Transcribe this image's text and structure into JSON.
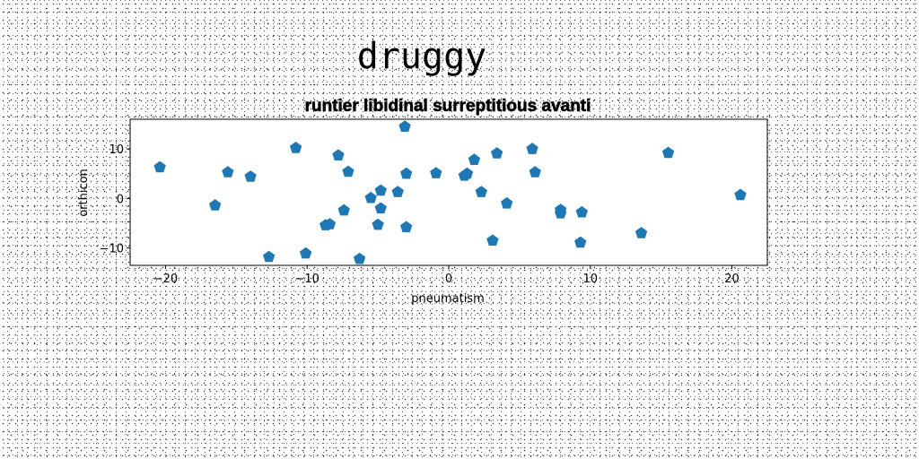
{
  "figure": {
    "suptitle": "druggy"
  },
  "chart_data": {
    "type": "scatter",
    "title": "runtier libidinal surreptitious avanti",
    "xlabel": "pneumatism",
    "ylabel": "orthicon",
    "xlim": [
      -22.5,
      22.5
    ],
    "ylim": [
      -13.5,
      16
    ],
    "xticks": [
      -20,
      -10,
      0,
      10,
      20
    ],
    "xtick_labels": [
      "−20",
      "−10",
      "0",
      "10",
      "20"
    ],
    "yticks": [
      -10,
      0,
      10
    ],
    "ytick_labels": [
      "−10",
      "0",
      "10"
    ],
    "grid": false,
    "marker": "pentagon",
    "color": "#1f77b4",
    "points": [
      {
        "x": -20.4,
        "y": 6.3
      },
      {
        "x": -16.5,
        "y": -1.4
      },
      {
        "x": -15.6,
        "y": 5.3
      },
      {
        "x": -14.0,
        "y": 4.4
      },
      {
        "x": -12.7,
        "y": -11.8
      },
      {
        "x": -10.8,
        "y": 10.2
      },
      {
        "x": -10.1,
        "y": -11.1
      },
      {
        "x": -8.7,
        "y": -5.4
      },
      {
        "x": -8.4,
        "y": -5.2
      },
      {
        "x": -7.8,
        "y": 8.7
      },
      {
        "x": -7.4,
        "y": -2.4
      },
      {
        "x": -7.1,
        "y": 5.4
      },
      {
        "x": -6.3,
        "y": -12.2
      },
      {
        "x": -5.5,
        "y": 0.1
      },
      {
        "x": -5.0,
        "y": -5.3
      },
      {
        "x": -4.8,
        "y": 1.6
      },
      {
        "x": -4.8,
        "y": -2.0
      },
      {
        "x": -3.6,
        "y": 1.3
      },
      {
        "x": -3.1,
        "y": 14.5
      },
      {
        "x": -3.0,
        "y": 5.0
      },
      {
        "x": -3.0,
        "y": -5.8
      },
      {
        "x": -0.9,
        "y": 5.1
      },
      {
        "x": 1.1,
        "y": 4.6
      },
      {
        "x": 1.3,
        "y": 5.0
      },
      {
        "x": 1.8,
        "y": 7.8
      },
      {
        "x": 2.3,
        "y": 1.3
      },
      {
        "x": 3.1,
        "y": -8.5
      },
      {
        "x": 3.4,
        "y": 9.1
      },
      {
        "x": 4.1,
        "y": -1.0
      },
      {
        "x": 5.9,
        "y": 10.0
      },
      {
        "x": 6.1,
        "y": 5.3
      },
      {
        "x": 7.9,
        "y": -2.3
      },
      {
        "x": 7.9,
        "y": -3.0
      },
      {
        "x": 9.3,
        "y": -8.9
      },
      {
        "x": 9.4,
        "y": -2.8
      },
      {
        "x": 13.6,
        "y": -7.0
      },
      {
        "x": 15.5,
        "y": 9.2
      },
      {
        "x": 20.6,
        "y": 0.7
      }
    ]
  }
}
